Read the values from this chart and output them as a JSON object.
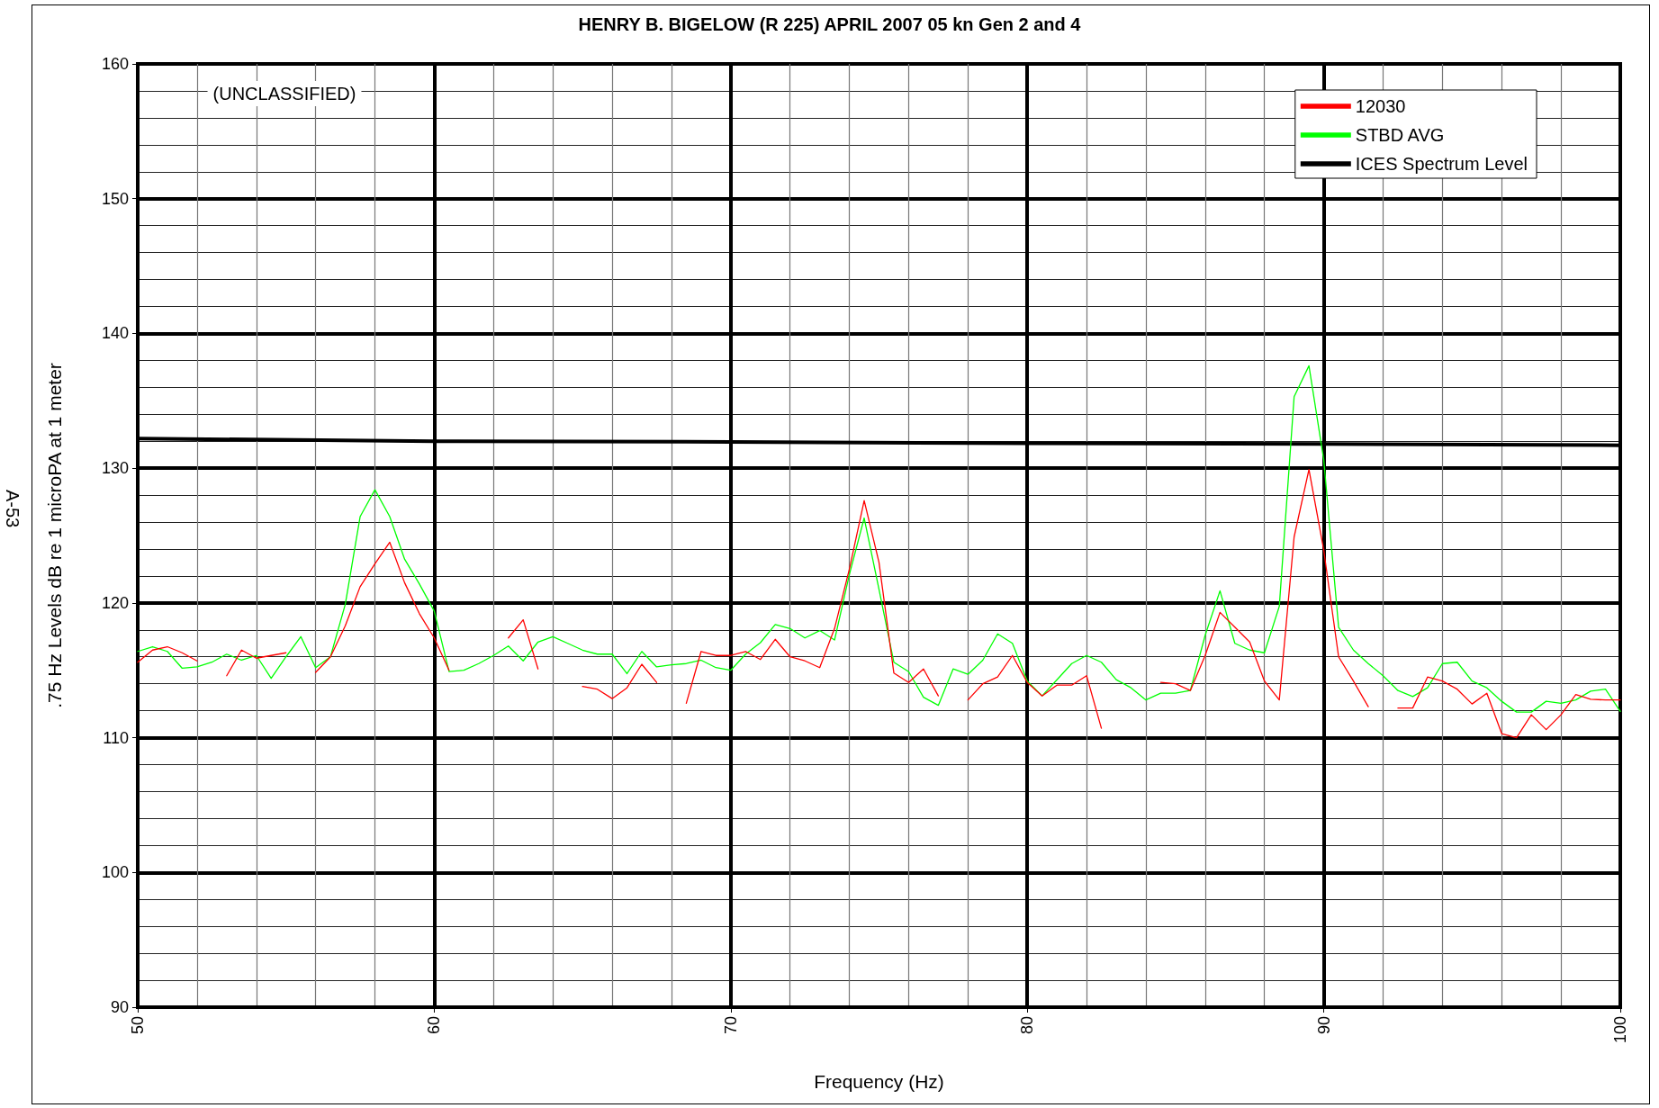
{
  "chart_data": {
    "type": "line",
    "title": "HENRY B. BIGELOW (R 225) APRIL 2007 05 kn Gen 2 and 4",
    "xlabel": "Frequency (Hz)",
    "ylabel": ".75 Hz Levels dB re 1 microPA at 1 meter",
    "annotations": [
      "(UNCLASSIFIED)",
      "A-53"
    ],
    "x": [
      50,
      50.5,
      51,
      51.5,
      52,
      52.5,
      53,
      53.5,
      54,
      54.5,
      55,
      55.5,
      56,
      56.5,
      57,
      57.5,
      58,
      58.5,
      59,
      59.5,
      60,
      60.5,
      61,
      61.5,
      62,
      62.5,
      63,
      63.5,
      64,
      64.5,
      65,
      65.5,
      66,
      66.5,
      67,
      67.5,
      68,
      68.5,
      69,
      69.5,
      70,
      70.5,
      71,
      71.5,
      72,
      72.5,
      73,
      73.5,
      74,
      74.5,
      75,
      75.5,
      76,
      76.5,
      77,
      77.5,
      78,
      78.5,
      79,
      79.5,
      80,
      80.5,
      81,
      81.5,
      82,
      82.5,
      83,
      83.5,
      84,
      84.5,
      85,
      85.5,
      86,
      86.5,
      87,
      87.5,
      88,
      88.5,
      89,
      89.5,
      90,
      90.5,
      91,
      91.5,
      92,
      92.5,
      93,
      93.5,
      94,
      94.5,
      95,
      95.5,
      96,
      96.5,
      97,
      97.5,
      98,
      98.5,
      99,
      99.5,
      100
    ],
    "series": [
      {
        "name": "12030",
        "color": "#ff0000",
        "values": [
          115.6,
          116.5,
          116.75,
          116.3,
          115.7,
          null,
          114.6,
          116.5,
          115.9,
          116.1,
          116.3,
          null,
          114.85,
          116.0,
          118.3,
          121.2,
          122.9,
          124.5,
          121.5,
          119.2,
          117.4,
          115.0,
          null,
          null,
          null,
          117.4,
          118.75,
          115.1,
          null,
          null,
          113.8,
          113.6,
          112.9,
          113.7,
          115.45,
          114.1,
          null,
          112.55,
          116.4,
          116.1,
          116.1,
          116.4,
          115.8,
          117.3,
          116.0,
          115.7,
          115.2,
          118.1,
          122.5,
          127.6,
          123.0,
          114.8,
          114.1,
          115.1,
          113.1,
          null,
          112.8,
          114.0,
          114.5,
          116.1,
          114.1,
          113.1,
          113.9,
          113.9,
          114.6,
          110.7,
          null,
          null,
          null,
          114.1,
          114.0,
          113.5,
          116.1,
          119.3,
          118.2,
          117.1,
          114.2,
          112.8,
          124.9,
          129.9,
          123.9,
          116.0,
          114.2,
          112.3,
          null,
          112.2,
          112.2,
          114.5,
          114.2,
          113.6,
          112.5,
          113.3,
          110.3,
          110.0,
          111.7,
          110.6,
          111.7,
          113.2,
          112.85,
          112.8,
          112.8
        ]
      },
      {
        "name": "STBD AVG",
        "color": "#00ff00",
        "values": [
          116.4,
          116.75,
          116.4,
          115.15,
          115.25,
          115.6,
          116.2,
          115.75,
          116.1,
          114.4,
          116.0,
          117.5,
          115.2,
          116.0,
          119.9,
          126.4,
          128.4,
          126.4,
          123.25,
          121.4,
          119.4,
          114.9,
          115.0,
          115.5,
          116.1,
          116.8,
          115.7,
          117.1,
          117.5,
          117.0,
          116.5,
          116.2,
          116.2,
          114.75,
          116.4,
          115.25,
          115.4,
          115.5,
          115.75,
          115.2,
          115.0,
          116.2,
          117.05,
          118.4,
          118.1,
          117.4,
          117.95,
          117.25,
          122.1,
          126.3,
          121.0,
          115.6,
          114.9,
          113.0,
          112.4,
          115.1,
          114.7,
          115.75,
          117.7,
          117.0,
          114.2,
          113.1,
          114.3,
          115.5,
          116.1,
          115.6,
          114.3,
          113.7,
          112.8,
          113.3,
          113.3,
          113.5,
          117.6,
          120.9,
          117.0,
          116.5,
          116.3,
          119.75,
          135.3,
          137.6,
          130.6,
          118.2,
          116.5,
          115.5,
          114.6,
          113.5,
          113.05,
          113.7,
          115.5,
          115.6,
          114.2,
          113.7,
          112.7,
          111.9,
          111.9,
          112.7,
          112.55,
          112.8,
          113.45,
          113.6,
          111.95
        ]
      },
      {
        "name": "ICES Spectrum Level",
        "color": "#000000",
        "x": [
          50,
          60,
          70,
          80,
          90,
          100
        ],
        "values": [
          132.2,
          132.0,
          131.95,
          131.85,
          131.8,
          131.7
        ]
      }
    ],
    "xlim": [
      50,
      100
    ],
    "xticks": [
      50,
      60,
      70,
      80,
      90,
      100
    ],
    "ylim": [
      90,
      160
    ],
    "yticks": [
      90,
      100,
      110,
      120,
      130,
      140,
      150,
      160
    ],
    "grid": true,
    "legend": "top right",
    "marker": "none",
    "line_style": "solid"
  }
}
